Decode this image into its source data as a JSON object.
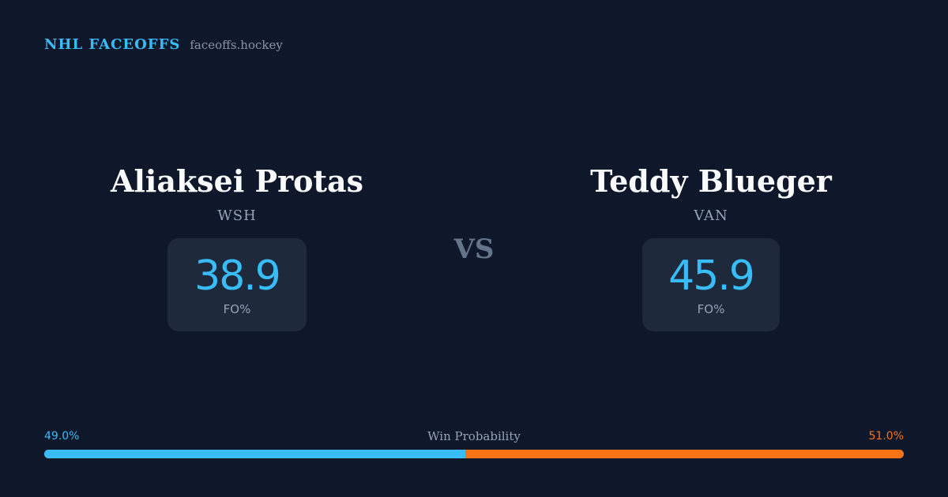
{
  "brand": {
    "name": "NHL FACEOFFS",
    "site": "faceoffs.hockey"
  },
  "players": [
    {
      "name": "Aliaksei Protas",
      "team": "WSH",
      "stat_value": "38.9",
      "stat_label": "FO%"
    },
    {
      "name": "Teddy Blueger",
      "team": "VAN",
      "stat_value": "45.9",
      "stat_label": "FO%"
    }
  ],
  "vs_label": "VS",
  "win_probability": {
    "label": "Win Probability",
    "left_text": "49.0%",
    "right_text": "51.0%",
    "left_value": 49.0,
    "right_value": 51.0,
    "left_color": "#38bdf8",
    "right_color": "#f97316"
  },
  "colors": {
    "background": "#0f172a",
    "card": "#1e293b",
    "accent": "#38bdf8"
  }
}
